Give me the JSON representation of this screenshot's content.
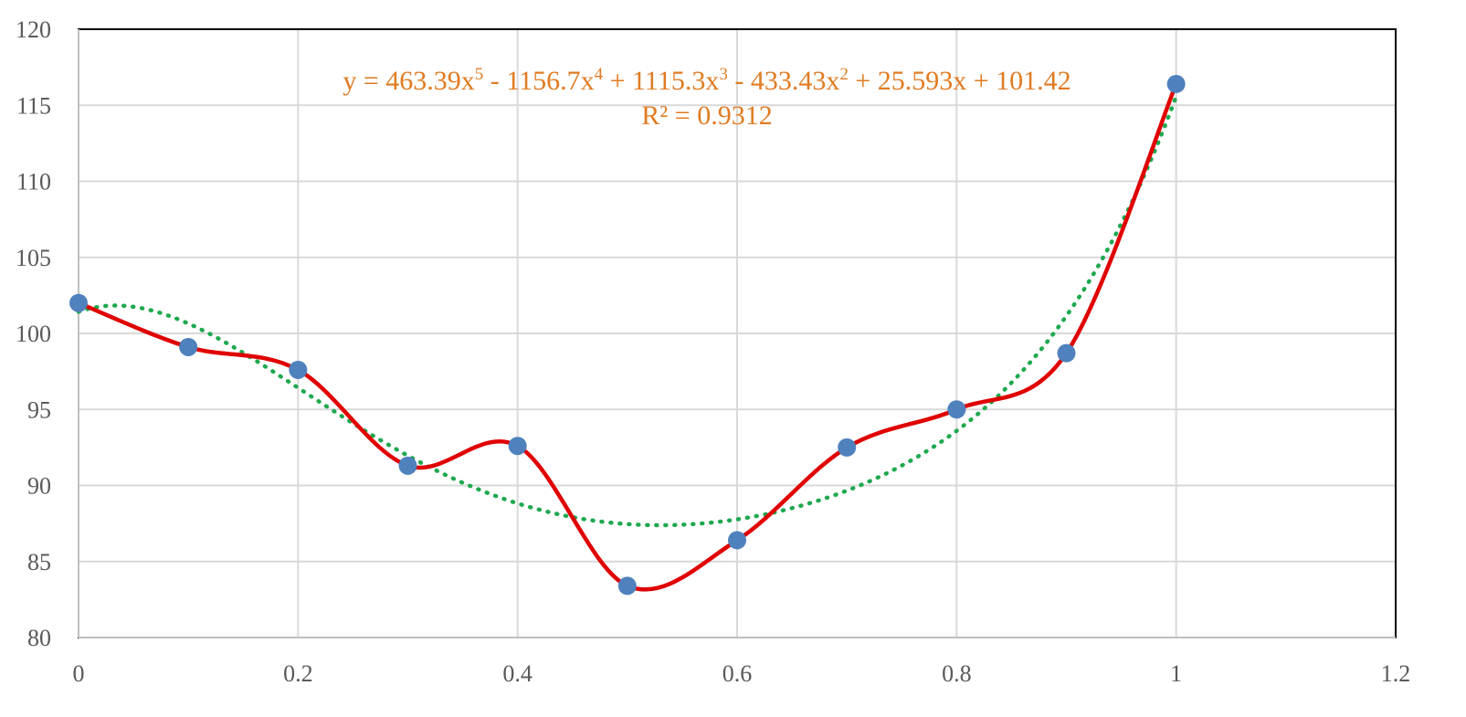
{
  "chart_data": {
    "type": "scatter",
    "title": "",
    "xlabel": "",
    "ylabel": "",
    "xlim": [
      0,
      1.2
    ],
    "ylim": [
      80,
      120
    ],
    "x_ticks": [
      "0",
      "0.2",
      "0.4",
      "0.6",
      "0.8",
      "1",
      "1.2"
    ],
    "y_ticks": [
      "80",
      "85",
      "90",
      "95",
      "100",
      "105",
      "110",
      "115",
      "120"
    ],
    "grid": true,
    "legend": "none",
    "series": [
      {
        "style": "smoothed-line-with-markers",
        "line_color": "#E00000",
        "marker_color": "#4F81BD",
        "x": [
          0,
          0.1,
          0.2,
          0.3,
          0.4,
          0.5,
          0.6,
          0.7,
          0.8,
          0.9,
          1
        ],
        "y": [
          102,
          99.1,
          97.6,
          91.3,
          92.6,
          83.4,
          86.4,
          92.5,
          95,
          98.7,
          116.4
        ]
      }
    ],
    "trendline": {
      "type": "polynomial",
      "order": 5,
      "color": "#1FA84F",
      "style": "dotted",
      "coefficients": [
        463.39,
        -1156.7,
        1115.3,
        -433.43,
        25.593,
        101.42
      ],
      "x_range": [
        0,
        1
      ],
      "equation_parts": {
        "lead": "y = 463.39x",
        "e5": "5",
        "t4": " - 1156.7x",
        "e4": "4",
        "t3": " + 1115.3x",
        "e3": "3",
        "t2": " - 433.43x",
        "e2": "2",
        "tail": " + 25.593x + 101.42"
      },
      "r_squared_label": "R² = 0.9312"
    }
  }
}
